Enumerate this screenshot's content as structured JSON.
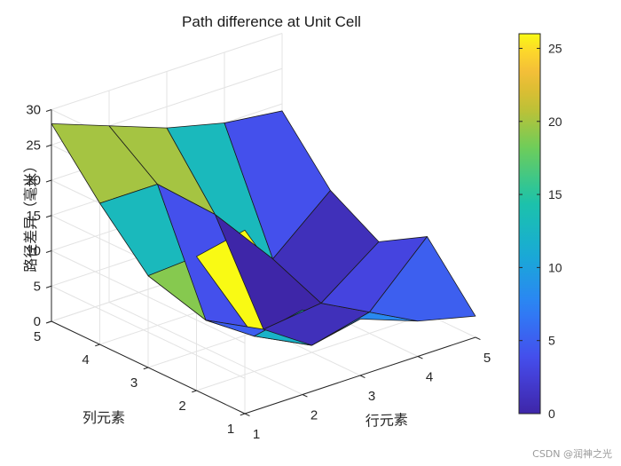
{
  "chart_data": {
    "type": "surface",
    "title": "Path difference at Unit Cell",
    "xlabel": "行元素",
    "ylabel": "列元素",
    "zlabel": "路径差异（毫米）",
    "x": [
      1,
      2,
      3,
      4,
      5
    ],
    "y": [
      1,
      2,
      3,
      4,
      5
    ],
    "z": [
      [
        26,
        12,
        8,
        5,
        3
      ],
      [
        19,
        5,
        1,
        3,
        11
      ],
      [
        13,
        4,
        0,
        1,
        7
      ],
      [
        20,
        20,
        13,
        4,
        11
      ],
      [
        28,
        25,
        22,
        20,
        19
      ]
    ],
    "xlim": [
      1,
      5
    ],
    "ylim": [
      1,
      5
    ],
    "zlim": [
      0,
      30
    ],
    "xticks": [
      "1",
      "2",
      "3",
      "4",
      "5"
    ],
    "yticks": [
      "1",
      "2",
      "3",
      "4",
      "5"
    ],
    "zticks": [
      "0",
      "5",
      "10",
      "15",
      "20",
      "25",
      "30"
    ],
    "grid": true,
    "colormap": "parula",
    "colorbar": {
      "range": [
        0,
        26
      ],
      "ticks": [
        "0",
        "5",
        "10",
        "15",
        "20",
        "25"
      ],
      "placement": "right"
    }
  },
  "watermark": "CSDN @润神之光"
}
